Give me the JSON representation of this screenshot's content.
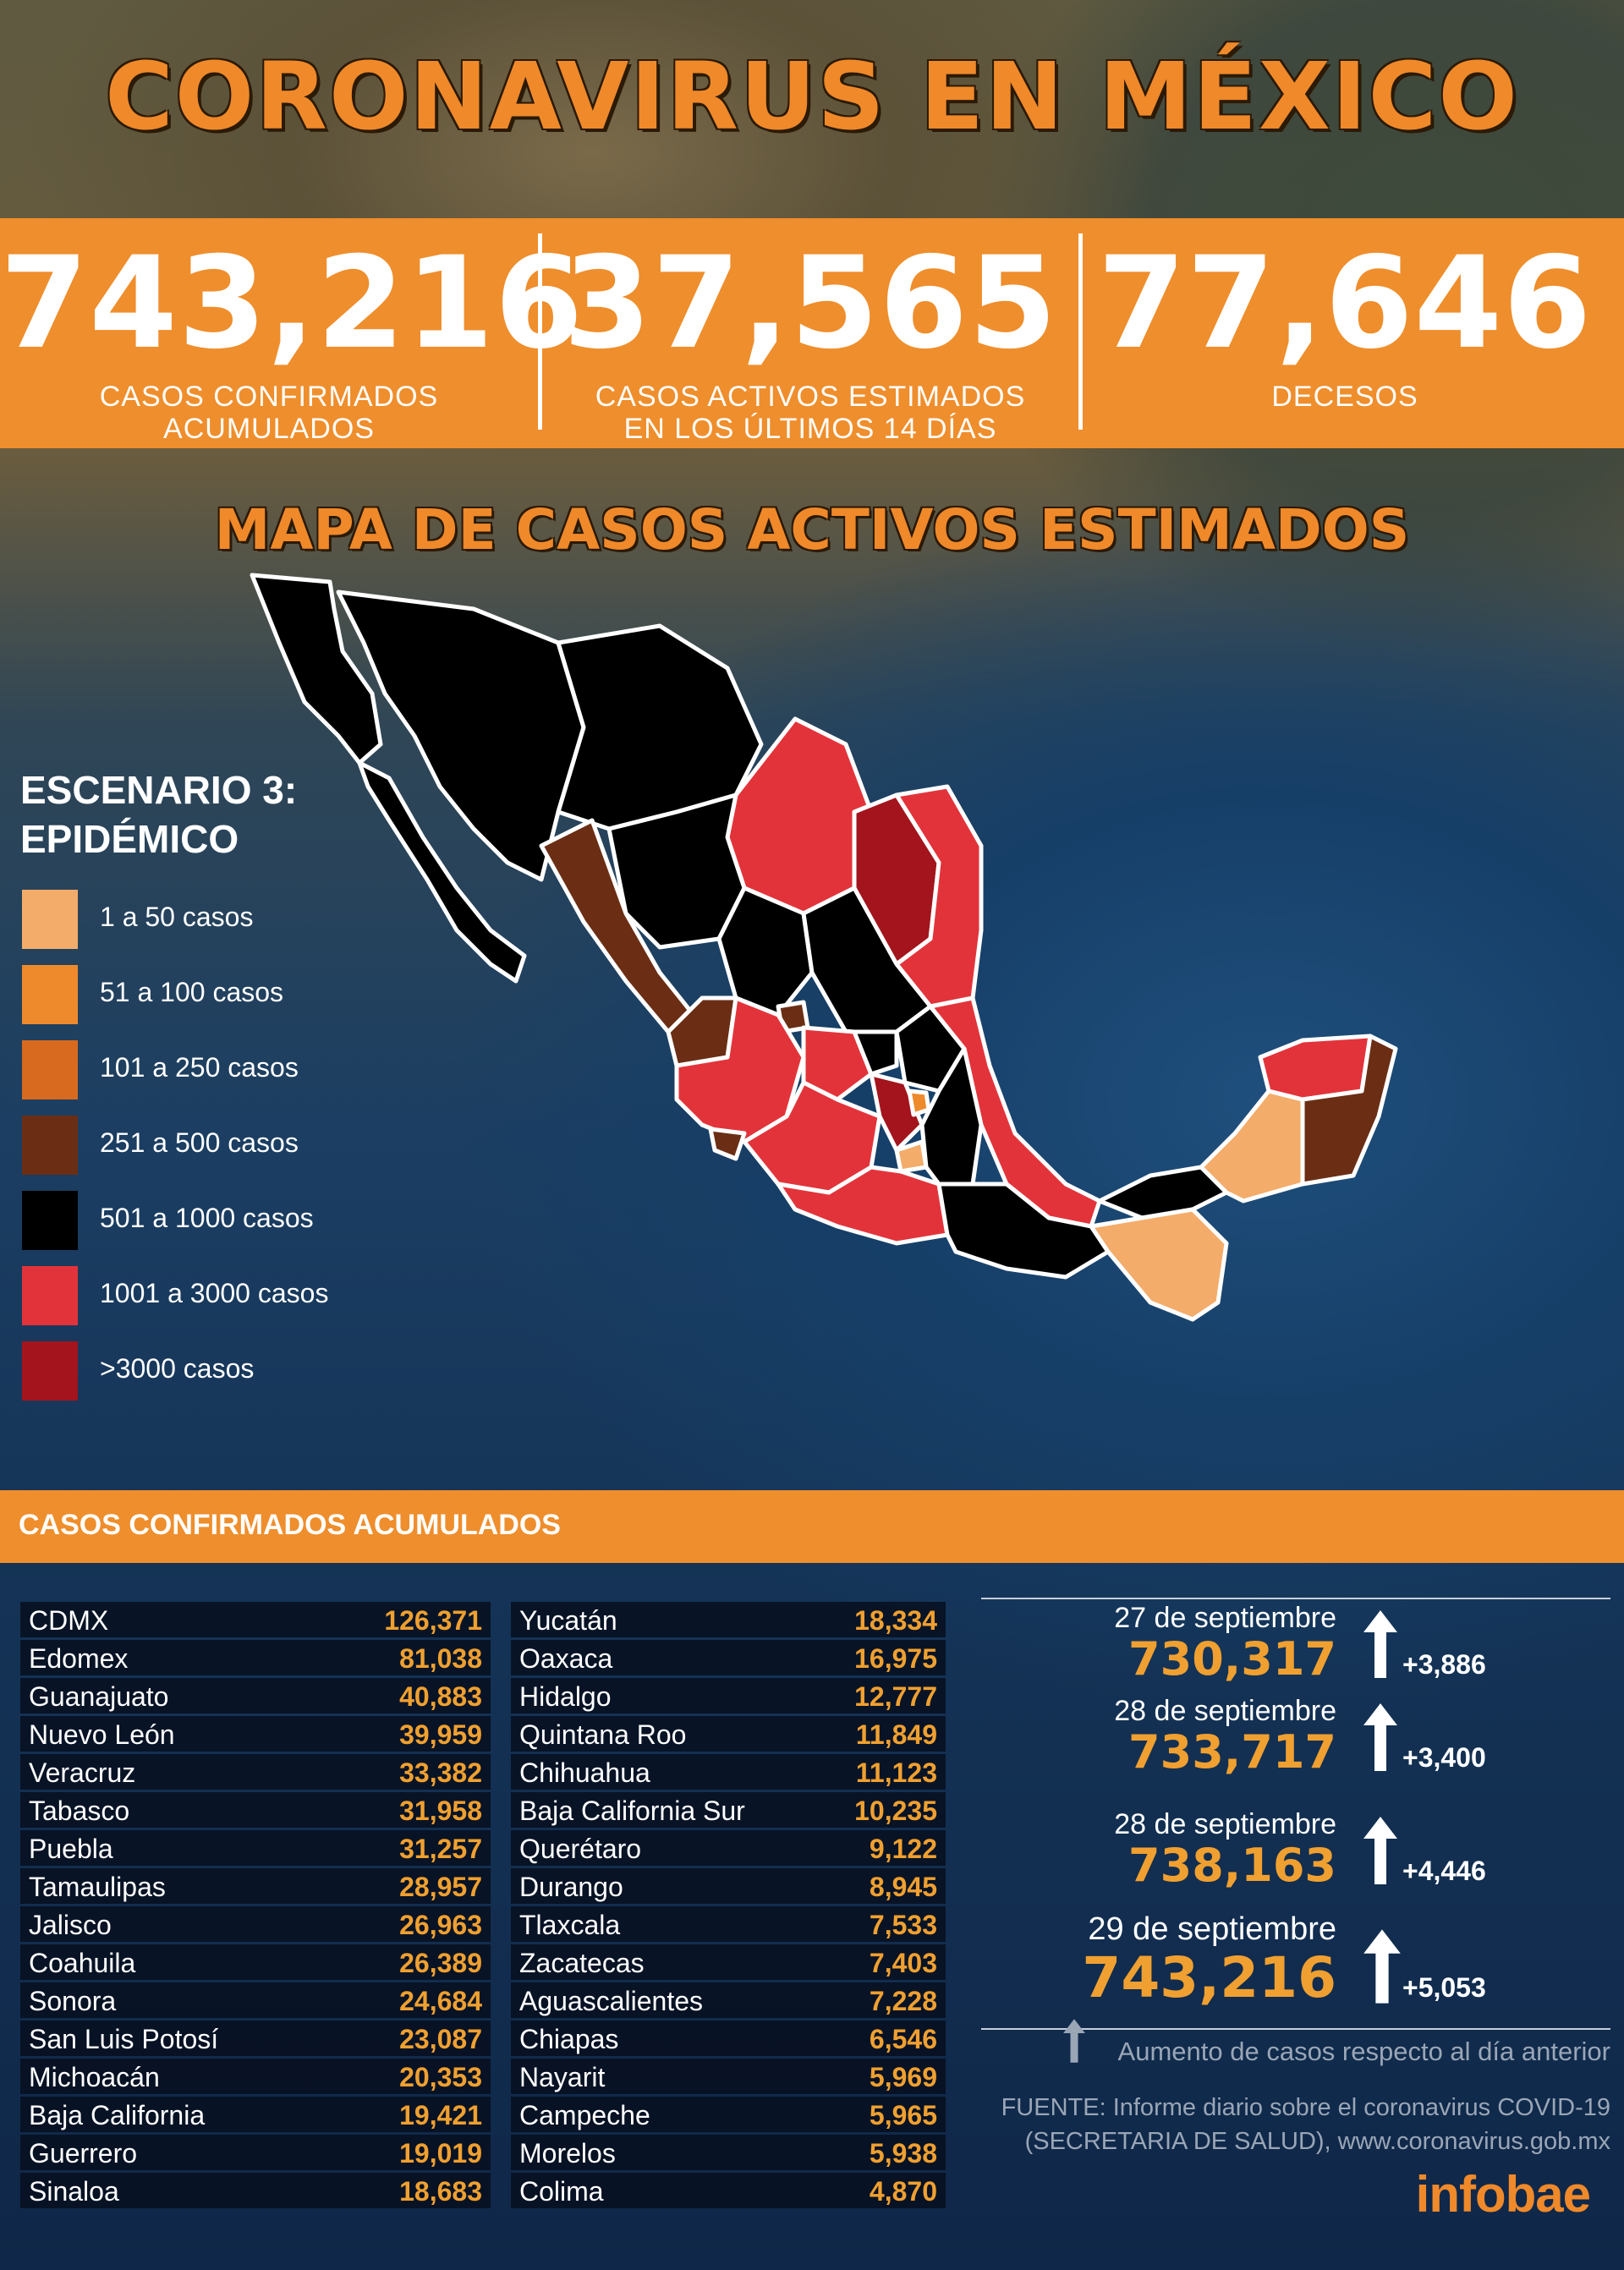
{
  "title": "CORONAVIRUS EN MÉXICO",
  "stats": {
    "confirmed": {
      "value": "743,216",
      "label": "CASOS CONFIRMADOS ACUMULADOS"
    },
    "active": {
      "value": "37,565",
      "label_line1": "CASOS ACTIVOS ESTIMADOS",
      "label_line2": "EN LOS ÚLTIMOS 14 DÍAS"
    },
    "deaths": {
      "value": "77,646",
      "label": "DECESOS"
    }
  },
  "map": {
    "title": "MAPA DE CASOS ACTIVOS ESTIMADOS",
    "legend_title_line1": "ESCENARIO 3:",
    "legend_title_line2": "EPIDÉMICO",
    "legend": [
      {
        "label": "1 a 50 casos",
        "color": "#f4ac6a"
      },
      {
        "label": "51 a 100 casos",
        "color": "#ee8a2c"
      },
      {
        "label": "101 a 250 casos",
        "color": "#d76a1e"
      },
      {
        "label": "251 a 500 casos",
        "color": "#6b2e14"
      },
      {
        "label": "501 a 1000 casos",
        "color": "#000000"
      },
      {
        "label": "1001 a 3000 casos",
        "color": "#e3333a"
      },
      {
        "label": ">3000 casos",
        "color": "#a3141c"
      }
    ]
  },
  "cases": {
    "title": "CASOS CONFIRMADOS ACUMULADOS",
    "left": [
      {
        "state": "CDMX",
        "value": "126,371"
      },
      {
        "state": "Edomex",
        "value": "81,038"
      },
      {
        "state": "Guanajuato",
        "value": "40,883"
      },
      {
        "state": "Nuevo León",
        "value": "39,959"
      },
      {
        "state": "Veracruz",
        "value": "33,382"
      },
      {
        "state": "Tabasco",
        "value": "31,958"
      },
      {
        "state": "Puebla",
        "value": "31,257"
      },
      {
        "state": "Tamaulipas",
        "value": "28,957"
      },
      {
        "state": "Jalisco",
        "value": "26,963"
      },
      {
        "state": "Coahuila",
        "value": "26,389"
      },
      {
        "state": "Sonora",
        "value": "24,684"
      },
      {
        "state": "San Luis Potosí",
        "value": "23,087"
      },
      {
        "state": "Michoacán",
        "value": "20,353"
      },
      {
        "state": "Baja California",
        "value": "19,421"
      },
      {
        "state": "Guerrero",
        "value": "19,019"
      },
      {
        "state": "Sinaloa",
        "value": "18,683"
      }
    ],
    "right": [
      {
        "state": "Yucatán",
        "value": "18,334"
      },
      {
        "state": "Oaxaca",
        "value": "16,975"
      },
      {
        "state": "Hidalgo",
        "value": "12,777"
      },
      {
        "state": "Quintana Roo",
        "value": "11,849"
      },
      {
        "state": "Chihuahua",
        "value": "11,123"
      },
      {
        "state": "Baja California Sur",
        "value": "10,235"
      },
      {
        "state": "Querétaro",
        "value": "9,122"
      },
      {
        "state": "Durango",
        "value": "8,945"
      },
      {
        "state": "Tlaxcala",
        "value": "7,533"
      },
      {
        "state": "Zacatecas",
        "value": "7,403"
      },
      {
        "state": "Aguascalientes",
        "value": "7,228"
      },
      {
        "state": "Chiapas",
        "value": "6,546"
      },
      {
        "state": "Nayarit",
        "value": "5,969"
      },
      {
        "state": "Campeche",
        "value": "5,965"
      },
      {
        "state": "Morelos",
        "value": "5,938"
      },
      {
        "state": "Colima",
        "value": "4,870"
      }
    ]
  },
  "daily": [
    {
      "date": "27 de septiembre",
      "total": "730,317",
      "increase": "+3,886"
    },
    {
      "date": "28 de septiembre",
      "total": "733,717",
      "increase": "+3,400"
    },
    {
      "date": "28 de septiembre",
      "total": "738,163",
      "increase": "+4,446"
    },
    {
      "date": "29 de septiembre",
      "total": "743,216",
      "increase": "+5,053"
    }
  ],
  "footnote": "Aumento de casos respecto al día anterior",
  "source_line1": "FUENTE:  Informe diario sobre el coronavirus COVID-19",
  "source_line2": "(SECRETARIA DE SALUD), www.coronavirus.gob.mx",
  "logo": "infobae"
}
